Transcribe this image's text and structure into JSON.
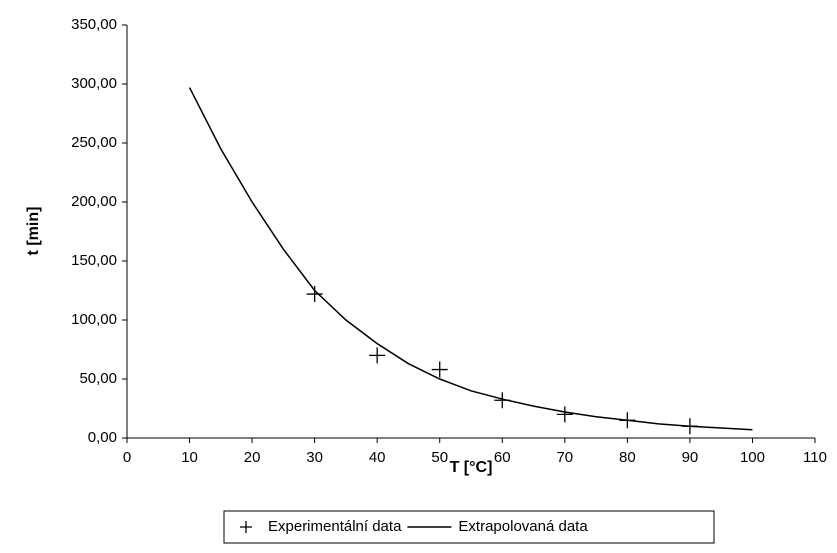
{
  "chart_data": {
    "type": "scatter",
    "xlabel": "T   [°C]",
    "ylabel": "t  [min]",
    "xlim": [
      0,
      110
    ],
    "xticks": [
      0,
      10,
      20,
      30,
      40,
      50,
      60,
      70,
      80,
      90,
      100,
      110
    ],
    "ylim": [
      0,
      350
    ],
    "yticks": [
      {
        "value": 0,
        "label": "0,00"
      },
      {
        "value": 50,
        "label": "50,00"
      },
      {
        "value": 100,
        "label": "100,00"
      },
      {
        "value": 150,
        "label": "150,00"
      },
      {
        "value": 200,
        "label": "200,00"
      },
      {
        "value": 250,
        "label": "250,00"
      },
      {
        "value": 300,
        "label": "300,00"
      },
      {
        "value": 350,
        "label": "350,00"
      }
    ],
    "legend": "bottom",
    "series": [
      {
        "name": "Experimentální data",
        "type": "scatter",
        "color": "#000000",
        "x": [
          30,
          40,
          50,
          60,
          70,
          80,
          90
        ],
        "values": [
          122,
          70,
          58,
          32,
          20,
          15,
          10
        ]
      },
      {
        "name": "Extrapolovaná data",
        "type": "line",
        "color": "#000000",
        "x": [
          10,
          15,
          20,
          25,
          30,
          35,
          40,
          45,
          50,
          55,
          60,
          65,
          70,
          75,
          80,
          85,
          90,
          95,
          100
        ],
        "values": [
          297,
          245,
          200,
          160,
          125,
          100,
          80,
          63,
          50,
          40,
          33,
          27,
          22,
          18,
          15,
          12,
          10,
          8.5,
          7
        ]
      }
    ]
  }
}
